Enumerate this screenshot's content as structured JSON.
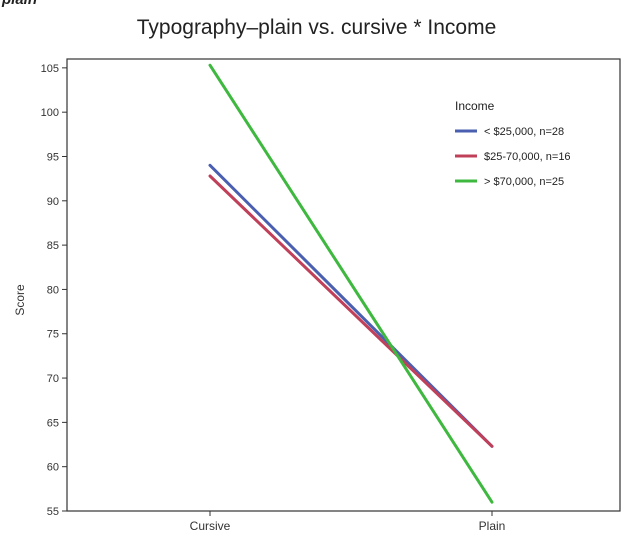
{
  "top_fragment": "plain",
  "chart_data": {
    "type": "line",
    "title": "Typography–plain vs. cursive * Income",
    "xlabel": "",
    "ylabel": "Score",
    "categories": [
      "Cursive",
      "Plain"
    ],
    "ylim": [
      55,
      106
    ],
    "yticks": [
      55,
      60,
      65,
      70,
      75,
      80,
      85,
      90,
      95,
      100,
      105
    ],
    "legend": {
      "title": "Income",
      "placement": "top-right"
    },
    "grid": false,
    "series": [
      {
        "name": "< $25,000, n=28",
        "color": "#4a5fb0",
        "values": [
          94.0,
          62.3
        ]
      },
      {
        "name": "$25-70,000, n=16",
        "color": "#c0405a",
        "values": [
          92.8,
          62.3
        ]
      },
      {
        "name": "> $70,000, n=25",
        "color": "#3fb83f",
        "values": [
          105.3,
          56.0
        ]
      }
    ]
  }
}
